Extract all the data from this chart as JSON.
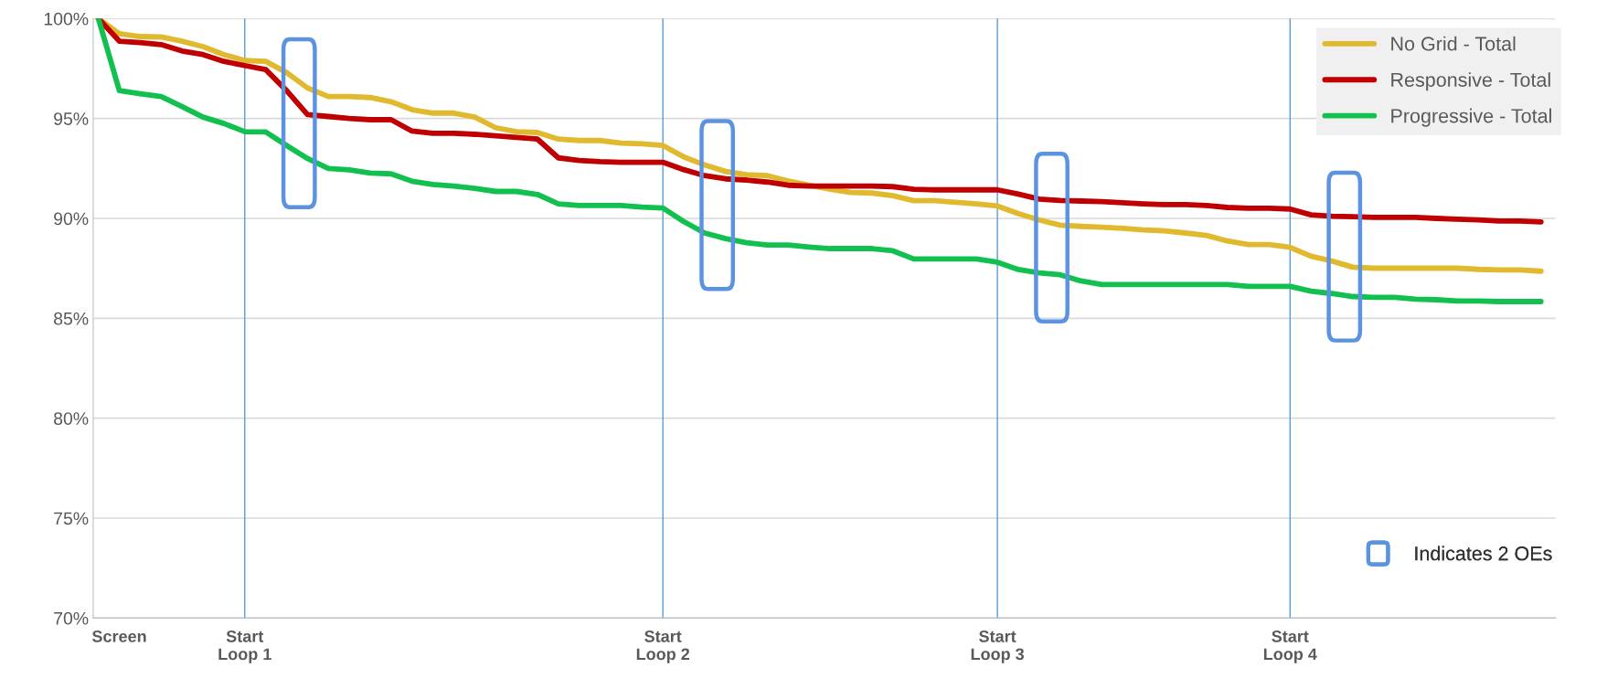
{
  "chart_data": {
    "type": "line",
    "categories": [
      null,
      "Screen",
      null,
      null,
      null,
      null,
      null,
      "Start\nLoop 1",
      null,
      null,
      null,
      null,
      null,
      null,
      null,
      null,
      null,
      null,
      null,
      null,
      null,
      null,
      null,
      null,
      null,
      null,
      null,
      "Start\nLoop 2",
      null,
      null,
      null,
      null,
      null,
      null,
      null,
      null,
      null,
      null,
      null,
      null,
      null,
      null,
      null,
      "Start\nLoop 3",
      null,
      null,
      null,
      null,
      null,
      null,
      null,
      null,
      null,
      null,
      null,
      null,
      null,
      "Start\nLoop 4",
      null,
      null,
      null,
      null,
      null,
      null,
      null,
      null,
      null,
      null,
      null,
      null
    ],
    "series": [
      {
        "name": "No Grid - Total",
        "color": "#e0b92e",
        "values": [
          100,
          99.24,
          99.1,
          99.08,
          98.87,
          98.6,
          98.2,
          97.9,
          97.86,
          97.3,
          96.53,
          96.1,
          96.1,
          96.05,
          95.84,
          95.44,
          95.27,
          95.27,
          95.07,
          94.54,
          94.34,
          94.3,
          93.97,
          93.9,
          93.9,
          93.77,
          93.73,
          93.65,
          93.08,
          92.68,
          92.35,
          92.19,
          92.14,
          91.87,
          91.66,
          91.46,
          91.3,
          91.27,
          91.14,
          90.89,
          90.89,
          90.81,
          90.73,
          90.62,
          90.24,
          89.92,
          89.66,
          89.6,
          89.56,
          89.5,
          89.42,
          89.38,
          89.27,
          89.15,
          88.87,
          88.69,
          88.69,
          88.55,
          88.11,
          87.87,
          87.56,
          87.51,
          87.51,
          87.51,
          87.51,
          87.51,
          87.45,
          87.42,
          87.42,
          87.36
        ]
      },
      {
        "name": "Responsive - Total",
        "color": "#c00000",
        "values": [
          100,
          98.87,
          98.8,
          98.7,
          98.38,
          98.2,
          97.86,
          97.65,
          97.45,
          96.4,
          95.2,
          95.1,
          95.0,
          94.94,
          94.94,
          94.37,
          94.26,
          94.26,
          94.21,
          94.13,
          94.05,
          93.97,
          93.03,
          92.9,
          92.84,
          92.81,
          92.81,
          92.81,
          92.44,
          92.14,
          91.98,
          91.92,
          91.82,
          91.66,
          91.62,
          91.62,
          91.62,
          91.62,
          91.59,
          91.46,
          91.43,
          91.43,
          91.43,
          91.43,
          91.22,
          90.97,
          90.9,
          90.87,
          90.84,
          90.78,
          90.73,
          90.69,
          90.69,
          90.65,
          90.55,
          90.51,
          90.51,
          90.47,
          90.18,
          90.11,
          90.09,
          90.05,
          90.05,
          90.05,
          90.0,
          89.96,
          89.93,
          89.87,
          89.87,
          89.82
        ]
      },
      {
        "name": "Progressive - Total",
        "color": "#12c050",
        "values": [
          100,
          96.4,
          96.24,
          96.1,
          95.6,
          95.07,
          94.75,
          94.34,
          94.33,
          93.65,
          93.0,
          92.5,
          92.43,
          92.27,
          92.23,
          91.86,
          91.7,
          91.62,
          91.5,
          91.35,
          91.35,
          91.2,
          90.73,
          90.65,
          90.65,
          90.65,
          90.57,
          90.52,
          89.84,
          89.27,
          88.99,
          88.78,
          88.67,
          88.67,
          88.57,
          88.49,
          88.49,
          88.49,
          88.38,
          87.97,
          87.97,
          87.97,
          87.97,
          87.81,
          87.44,
          87.27,
          87.18,
          86.87,
          86.69,
          86.69,
          86.69,
          86.69,
          86.69,
          86.69,
          86.69,
          86.6,
          86.6,
          86.6,
          86.36,
          86.24,
          86.09,
          86.05,
          86.05,
          85.96,
          85.93,
          85.87,
          85.87,
          85.84,
          85.84,
          85.84
        ]
      }
    ],
    "ylim": [
      70,
      100
    ],
    "yticks": [
      {
        "value": 70,
        "label": "70%"
      },
      {
        "value": 75,
        "label": "75%"
      },
      {
        "value": 80,
        "label": "80%"
      },
      {
        "value": 85,
        "label": "85%"
      },
      {
        "value": 90,
        "label": "90%"
      },
      {
        "value": 95,
        "label": "95%"
      },
      {
        "value": 100,
        "label": "100%"
      }
    ],
    "grid": "y",
    "legend": "top right",
    "marker": "none",
    "line_style": "solid",
    "ref_lines": [
      {
        "axis": "x",
        "value": "Start\nLoop 1",
        "color": "#5b9bd5"
      },
      {
        "axis": "x",
        "value": "Start\nLoop 2",
        "color": "#5b9bd5"
      },
      {
        "axis": "x",
        "value": "Start\nLoop 3",
        "color": "#5b9bd5"
      },
      {
        "axis": "x",
        "value": "Start\nLoop 4",
        "color": "#5b9bd5"
      }
    ],
    "annotations": [
      "Indicates 2 OEs"
    ]
  }
}
